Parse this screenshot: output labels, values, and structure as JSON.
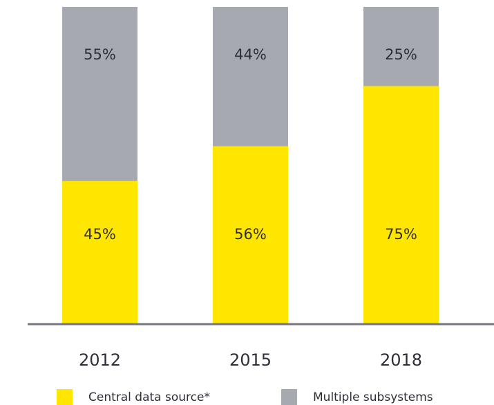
{
  "chart_data": {
    "type": "stacked_bar",
    "categories": [
      "2012",
      "2015",
      "2018"
    ],
    "series": [
      {
        "name": "Central data source*",
        "color": "#ffe600",
        "values": [
          45,
          56,
          75
        ],
        "value_labels": [
          "45%",
          "56%",
          "75%"
        ]
      },
      {
        "name": "Multiple subsystems",
        "color": "#a7a9b0",
        "values": [
          55,
          44,
          25
        ],
        "value_labels": [
          "55%",
          "44%",
          "25%"
        ]
      }
    ],
    "ylim": [
      0,
      100
    ]
  }
}
